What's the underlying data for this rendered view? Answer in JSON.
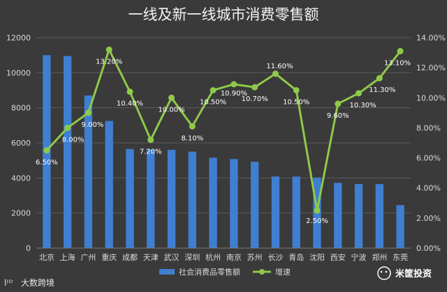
{
  "chart_data": {
    "type": "bar",
    "title": "一线及新一线城市消费零售额",
    "categories": [
      "北京",
      "上海",
      "广州",
      "重庆",
      "成都",
      "天津",
      "武汉",
      "深圳",
      "杭州",
      "南京",
      "苏州",
      "长沙",
      "青岛",
      "沈阳",
      "西安",
      "宁波",
      "郑州",
      "东莞"
    ],
    "series": [
      {
        "name": "社会消费品零售额",
        "type": "bar",
        "axis": "left",
        "values": [
          11000,
          10950,
          8700,
          7250,
          5650,
          5620,
          5600,
          5500,
          5150,
          5080,
          4920,
          4080,
          4080,
          4020,
          3720,
          3650,
          3650,
          2450
        ]
      },
      {
        "name": "增速",
        "type": "line",
        "axis": "right",
        "values": [
          6.5,
          8.0,
          9.0,
          13.2,
          10.4,
          7.2,
          10.0,
          8.1,
          10.5,
          10.9,
          10.7,
          11.6,
          10.5,
          2.5,
          9.6,
          10.3,
          11.3,
          13.1
        ],
        "labels": [
          "6.50%",
          "8.00%",
          "9.00%",
          "13.20%",
          "10.40%",
          "7.20%",
          "10.00%",
          "8.10%",
          "10.50%",
          "10.90%",
          "10.70%",
          "11.60%",
          "10.50%",
          "2.50%",
          "9.60%",
          "10.30%",
          "11.30%",
          "13.10%"
        ]
      }
    ],
    "y_left": {
      "ylim": [
        0,
        12000
      ],
      "ticks": [
        "0",
        "2000",
        "4000",
        "6000",
        "8000",
        "10000",
        "12000"
      ]
    },
    "y_right": {
      "ylim": [
        0,
        14
      ],
      "ticks": [
        "0.00%",
        "2.00%",
        "4.00%",
        "6.00%",
        "8.00%",
        "10.00%",
        "12.00%",
        "14.00%"
      ]
    },
    "grid": true,
    "legend": {
      "position": "bottom"
    },
    "colors": {
      "bar": "#3f7fd1",
      "line": "#8fc94a",
      "background": "#3a3a3a",
      "grid": "#5a5a5a"
    }
  },
  "watermarks": {
    "left": "大数跨境",
    "right": "米筐投资"
  }
}
